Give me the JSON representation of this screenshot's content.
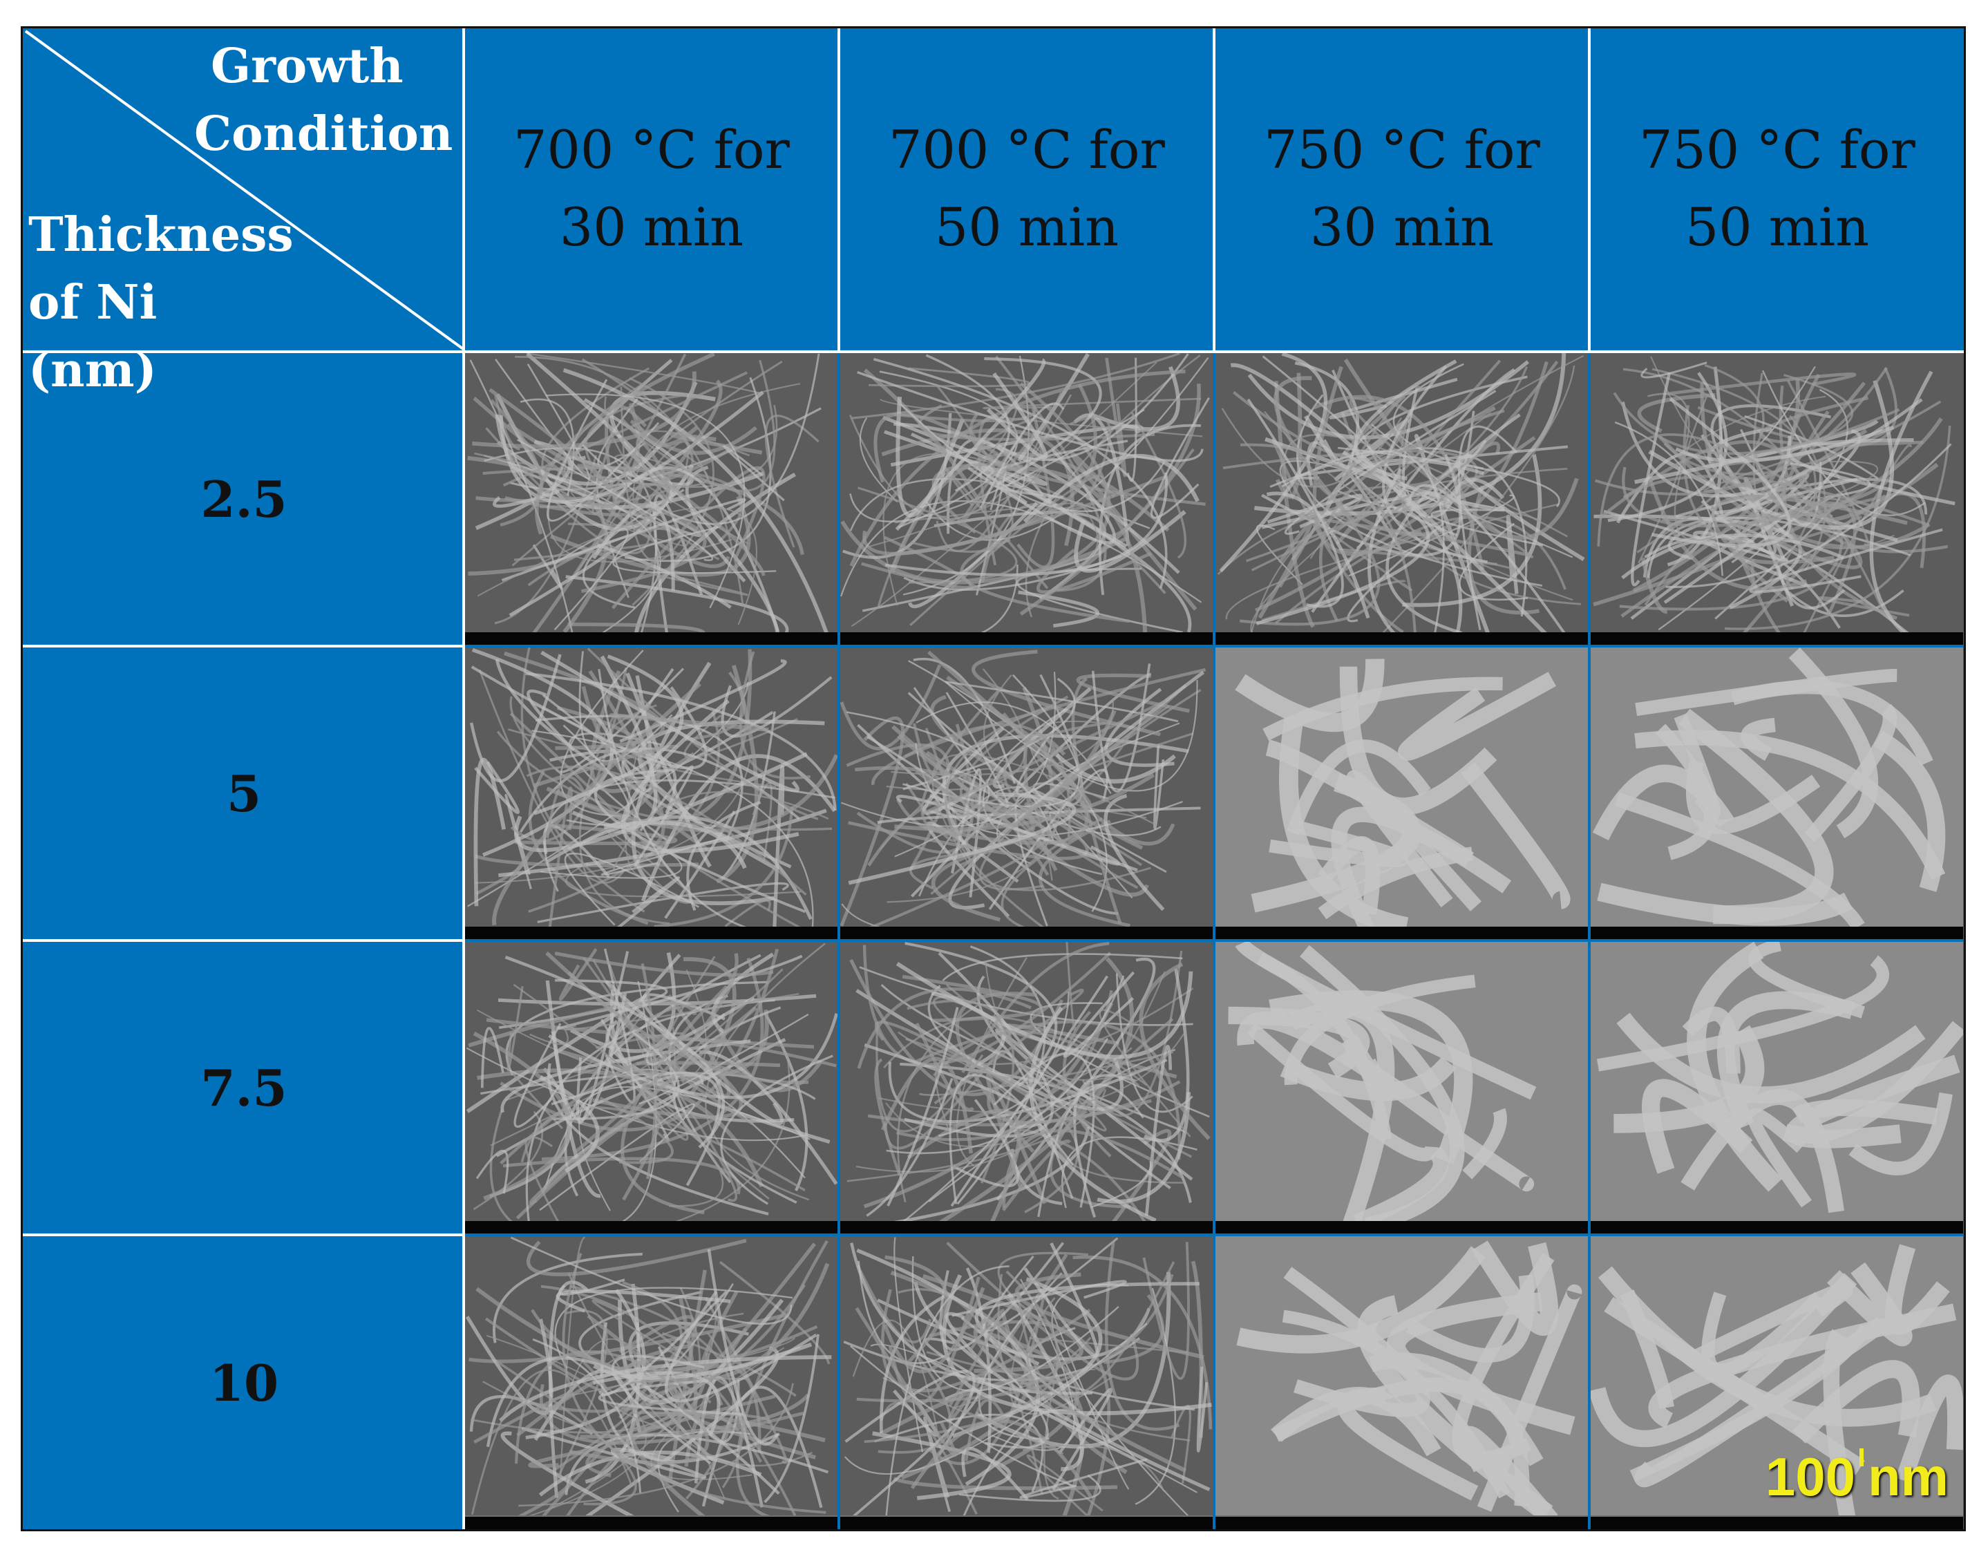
{
  "corner": {
    "column_axis": [
      "Growth",
      "Condition"
    ],
    "row_axis": [
      "Thickness",
      "of Ni (nm)"
    ]
  },
  "columns": [
    {
      "line1": "700 °C for",
      "line2": "30 min"
    },
    {
      "line1": "700 °C for",
      "line2": "50 min"
    },
    {
      "line1": "750 °C for",
      "line2": "30 min"
    },
    {
      "line1": "750 °C for",
      "line2": "50 min"
    }
  ],
  "rows": [
    {
      "label": "2.5"
    },
    {
      "label": "5"
    },
    {
      "label": "7.5"
    },
    {
      "label": "10"
    }
  ],
  "scale_bar": {
    "value": "100",
    "unit": "nm"
  },
  "colors": {
    "header_bg": "#0071bb",
    "grid": "#ffffff",
    "scale_text": "#f2ec1a"
  }
}
